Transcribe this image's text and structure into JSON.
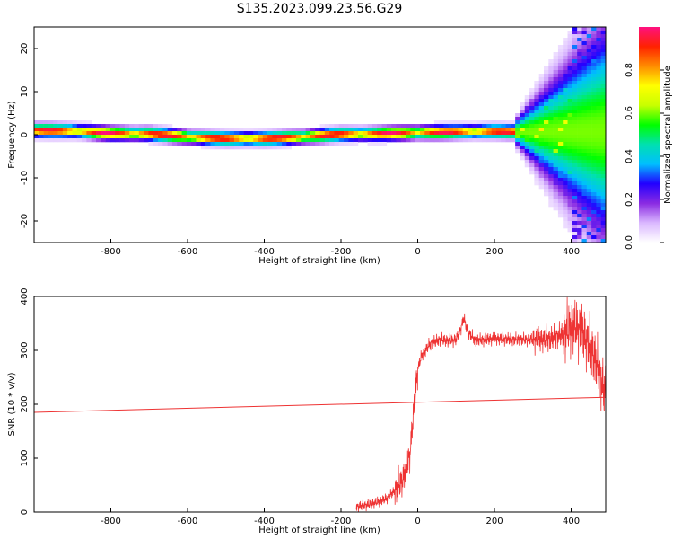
{
  "title": "S135.2023.099.23.56.G29",
  "chart_data": [
    {
      "type": "heatmap",
      "xlabel": "Height of straight line (km)",
      "ylabel": "Frequency (Hz)",
      "xlim": [
        -1000,
        490
      ],
      "ylim": [
        -25,
        25
      ],
      "x_ticks": [
        -800,
        -600,
        -400,
        -200,
        0,
        200,
        400
      ],
      "y_ticks": [
        -20,
        -10,
        0,
        10,
        20
      ],
      "grid": false,
      "ridge": {
        "x": [
          -1000,
          -900,
          -800,
          -700,
          -600,
          -500,
          -400,
          -300,
          -200,
          -100,
          0,
          100,
          200,
          240
        ],
        "frequency": [
          1,
          0.9,
          0.3,
          0.2,
          -0.5,
          -0.9,
          -0.9,
          -0.5,
          0.1,
          0.2,
          0.5,
          0.7,
          0.8,
          0.7
        ]
      },
      "colorbar": {
        "label": "Normalized spectral amplitude",
        "range": [
          0,
          1
        ],
        "ticks": [
          "0.0",
          "0.2",
          "0.4",
          "0.6",
          "0.8"
        ],
        "colors": [
          "#ffffff",
          "#dab8ff",
          "#8a2be2",
          "#2200ff",
          "#00bfff",
          "#00e0b0",
          "#00ff00",
          "#c8ff00",
          "#ffff00",
          "#ff8c00",
          "#ff2200",
          "#ff1080"
        ]
      }
    },
    {
      "type": "line",
      "xlabel": "Height of straight line (km)",
      "ylabel": "SNR (10 * v/v)",
      "xlim": [
        -1000,
        490
      ],
      "ylim": [
        0,
        400
      ],
      "x_ticks": [
        -800,
        -600,
        -400,
        -200,
        0,
        200,
        400
      ],
      "y_ticks": [
        0,
        100,
        200,
        300,
        400
      ],
      "grid": false,
      "series": [
        {
          "color": "#ee3333",
          "x": [
            -160,
            -140,
            -120,
            -100,
            -80,
            -60,
            -40,
            -30,
            -20,
            -15,
            -10,
            -5,
            0,
            10,
            20,
            30,
            40,
            60,
            80,
            100,
            110,
            120,
            130,
            150,
            200,
            250,
            300,
            350,
            380,
            400,
            420,
            440,
            460,
            490
          ],
          "values": [
            10,
            12,
            15,
            20,
            25,
            40,
            60,
            80,
            110,
            150,
            190,
            230,
            265,
            290,
            300,
            310,
            315,
            320,
            318,
            320,
            335,
            360,
            335,
            318,
            322,
            320,
            320,
            322,
            330,
            345,
            340,
            320,
            290,
            215
          ]
        },
        {
          "color": "#ee3333",
          "x": [
            -1000,
            490
          ],
          "values": [
            185,
            213
          ]
        }
      ]
    }
  ]
}
